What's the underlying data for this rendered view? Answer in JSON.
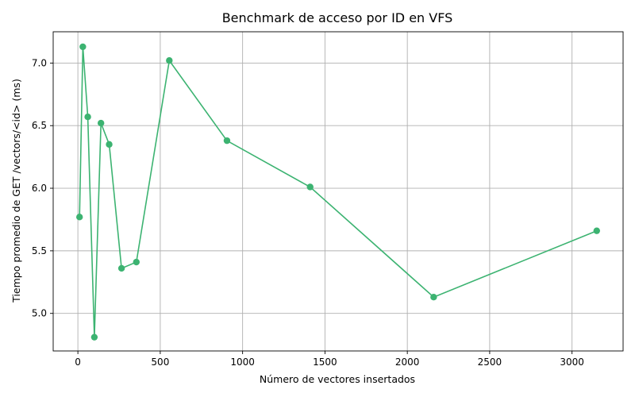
{
  "chart_data": {
    "type": "line",
    "title": "Benchmark de acceso por ID en VFS",
    "xlabel": "Número de vectores insertados",
    "ylabel": "Tiempo promedio de GET /vectors/<id> (ms)",
    "xlim": [
      -150,
      3310
    ],
    "ylim": [
      4.7,
      7.25
    ],
    "xticks": [
      0,
      500,
      1000,
      1500,
      2000,
      2500,
      3000
    ],
    "yticks": [
      5.0,
      5.5,
      6.0,
      6.5,
      7.0
    ],
    "ytick_labels": [
      "5.0",
      "5.5",
      "6.0",
      "6.5",
      "7.0"
    ],
    "grid": true,
    "line_color": "#3cb371",
    "series": [
      {
        "x": [
          10,
          30,
          60,
          100,
          140,
          190,
          265,
          355,
          555,
          905,
          1410,
          2160,
          3150
        ],
        "y": [
          5.77,
          7.13,
          6.57,
          4.81,
          6.52,
          6.35,
          5.36,
          5.41,
          7.02,
          6.38,
          6.01,
          5.13,
          5.66
        ]
      }
    ]
  }
}
